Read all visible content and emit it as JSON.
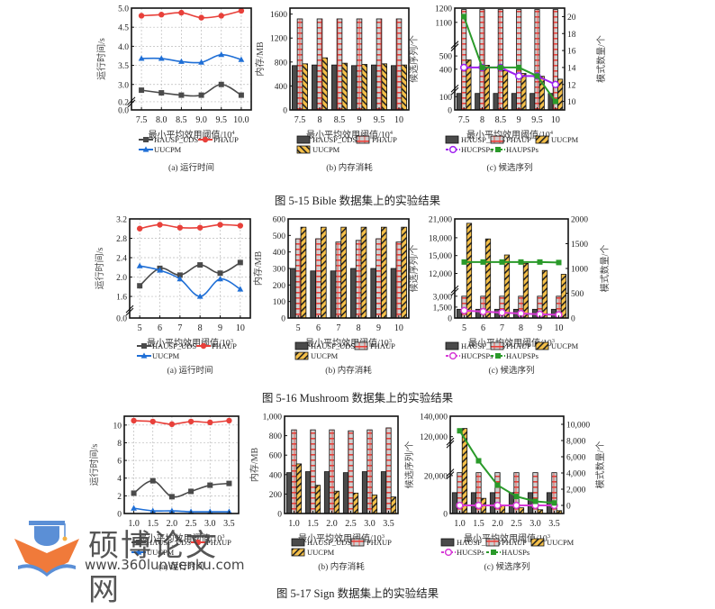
{
  "figures": [
    {
      "caption": "图 5-15 Bible 数据集上的实验结果"
    },
    {
      "caption": "图 5-16 Mushroom 数据集上的实验结果"
    },
    {
      "caption": "图 5-17 Sign 数据集上的实验结果"
    }
  ],
  "watermark": {
    "title": "硕博论文网",
    "url": "www.360lunwenku.com"
  },
  "colors": {
    "hausp_uds": "#4a4a4a",
    "phaup": "#e8403a",
    "uucpm": "#f5c04a",
    "uucpm_line": "#1f6fd6",
    "hucpsps": "#a020f0",
    "hucsps": "#d63ad6",
    "haupsps": "#2a9a2a"
  },
  "chart_data": [
    {
      "id": "bible-a",
      "type": "line",
      "subcaption": "(a) 运行时间",
      "xlabel": "最小平均效用阈值/10",
      "xlabel_exp": "4",
      "ylabel": "运行时间/s",
      "categories": [
        "7.5",
        "8.0",
        "8.5",
        "9.0",
        "9.5",
        "10.0"
      ],
      "yticks": [
        "0.0",
        "0.2",
        "3.0",
        "3.5",
        "4.0",
        "4.5",
        "5.0"
      ],
      "axis_break": true,
      "grid": true,
      "ylim_upper": [
        2.6,
        5.0
      ],
      "series": [
        {
          "name": "HAUSP_UDS",
          "values": [
            2.85,
            2.78,
            2.72,
            2.72,
            3.0,
            2.72
          ],
          "marker": "square",
          "color_key": "hausp_uds"
        },
        {
          "name": "PHAUP",
          "values": [
            4.8,
            4.83,
            4.88,
            4.75,
            4.8,
            4.93
          ],
          "marker": "circle",
          "color_key": "phaup"
        },
        {
          "name": "UUCPM",
          "values": [
            3.68,
            3.68,
            3.6,
            3.58,
            3.78,
            3.65
          ],
          "marker": "triangle",
          "color_key": "uucpm_line"
        }
      ],
      "legend": [
        "HAUSP_UDS",
        "PHAUP",
        "UUCPM"
      ],
      "legend_position": "bottom"
    },
    {
      "id": "bible-b",
      "type": "bar",
      "subcaption": "(b) 内存消耗",
      "xlabel": "最小平均效用阈值/10",
      "xlabel_exp": "4",
      "ylabel": "内存/MB",
      "categories": [
        "7.5",
        "8",
        "8.5",
        "9",
        "9.5",
        "10"
      ],
      "yticks": [
        "0",
        "400",
        "800",
        "1200",
        "1600"
      ],
      "ylim": [
        0,
        1700
      ],
      "series": [
        {
          "name": "HAUSP_UDS",
          "values": [
            740,
            750,
            750,
            740,
            750,
            740
          ],
          "color_key": "hausp_uds",
          "pattern": "solid"
        },
        {
          "name": "PHAUP",
          "values": [
            1520,
            1520,
            1520,
            1520,
            1520,
            1520
          ],
          "color_key": "phaup",
          "pattern": "grid"
        },
        {
          "name": "UUCPM",
          "values": [
            770,
            870,
            780,
            760,
            770,
            750
          ],
          "color_key": "uucpm",
          "pattern": "backhatch"
        }
      ],
      "legend": [
        "HAUSP_UDS",
        "PHAUP",
        "UUCPM"
      ],
      "legend_position": "bottom"
    },
    {
      "id": "bible-c",
      "type": "bar",
      "subcaption": "(c) 候选序列",
      "xlabel": "最小平均效用阈值/10",
      "xlabel_exp": "4",
      "ylabel": "候选序列/个",
      "ylabel_right": "模式数量/个",
      "categories": [
        "7.5",
        "8",
        "8.5",
        "9",
        "9.5",
        "10"
      ],
      "yticks": [
        "0",
        "100",
        "400",
        "500",
        "1100",
        "1200"
      ],
      "yticks_right": [
        "10",
        "12",
        "14",
        "16",
        "18",
        "20"
      ],
      "ylim_right": [
        9,
        21
      ],
      "axis_break": true,
      "series": [
        {
          "name": "HAUSP_UDS",
          "values": [
            140,
            140,
            140,
            140,
            140,
            140
          ],
          "color_key": "hausp_uds",
          "pattern": "solid"
        },
        {
          "name": "PHAUP",
          "values": [
            1190,
            1190,
            1190,
            1190,
            1190,
            1190
          ],
          "color_key": "phaup",
          "pattern": "grid"
        },
        {
          "name": "UUCPM",
          "values": [
            470,
            430,
            390,
            370,
            350,
            330
          ],
          "color_key": "uucpm",
          "pattern": "hatch"
        }
      ],
      "line_series": [
        {
          "name": "HUCPSPs",
          "values": [
            14,
            14,
            14,
            13,
            13,
            12
          ],
          "marker": "open-circle",
          "color_key": "hucpsps",
          "axis": "right"
        },
        {
          "name": "HAUPSPs",
          "values": [
            20,
            14,
            14,
            14,
            13,
            10
          ],
          "marker": "square",
          "color_key": "haupsps",
          "axis": "right"
        }
      ],
      "legend": [
        "HAUSP_UDS",
        "PHAUP",
        "UUCPM",
        "HUCPSPs",
        "HAUPSPs"
      ],
      "legend_position": "bottom"
    },
    {
      "id": "mushroom-a",
      "type": "line",
      "subcaption": "(a) 运行时间",
      "xlabel": "最小平均效用阈值/10",
      "xlabel_exp": "3",
      "ylabel": "运行时间/s",
      "categories": [
        "5",
        "6",
        "7",
        "8",
        "9",
        "10"
      ],
      "yticks": [
        "0.0",
        "1.6",
        "2.0",
        "2.4",
        "2.8",
        "3.2"
      ],
      "axis_break": true,
      "grid": true,
      "ylim_upper": [
        1.4,
        3.2
      ],
      "series": [
        {
          "name": "HAUSP_UDS",
          "values": [
            1.82,
            2.18,
            2.04,
            2.25,
            2.08,
            2.3
          ],
          "marker": "square",
          "color_key": "hausp_uds"
        },
        {
          "name": "PHAUP",
          "values": [
            3.0,
            3.08,
            3.02,
            3.02,
            3.08,
            3.06
          ],
          "marker": "circle",
          "color_key": "phaup"
        },
        {
          "name": "UUCPM",
          "values": [
            2.23,
            2.14,
            1.96,
            1.6,
            1.96,
            1.75
          ],
          "marker": "triangle",
          "color_key": "uucpm_line"
        }
      ],
      "legend": [
        "HAUSP_UDS",
        "PHAUP",
        "UUCPM"
      ],
      "legend_position": "bottom"
    },
    {
      "id": "mushroom-b",
      "type": "bar",
      "subcaption": "(b) 内存消耗",
      "xlabel": "最小平均效用阈值/10",
      "xlabel_exp": "3",
      "ylabel": "内存/MB",
      "categories": [
        "5",
        "6",
        "7",
        "8",
        "9",
        "10"
      ],
      "yticks": [
        "0",
        "100",
        "200",
        "300",
        "400",
        "500",
        "600"
      ],
      "ylim": [
        0,
        600
      ],
      "series": [
        {
          "name": "HAUSP_UDS",
          "values": [
            300,
            285,
            285,
            300,
            300,
            300
          ],
          "color_key": "hausp_uds",
          "pattern": "solid"
        },
        {
          "name": "PHAUP",
          "values": [
            480,
            480,
            460,
            470,
            480,
            460
          ],
          "color_key": "phaup",
          "pattern": "grid"
        },
        {
          "name": "UUCPM",
          "values": [
            550,
            550,
            550,
            550,
            550,
            550
          ],
          "color_key": "uucpm",
          "pattern": "hatch"
        }
      ],
      "legend": [
        "HAUSP_UDS",
        "PHAUP",
        "UUCPM"
      ],
      "legend_position": "bottom"
    },
    {
      "id": "mushroom-c",
      "type": "bar",
      "subcaption": "(c) 候选序列",
      "xlabel": "最小平均效用阈值/10",
      "xlabel_exp": "3",
      "ylabel": "候选序列/个",
      "ylabel_right": "模式数量/个",
      "categories": [
        "5",
        "6",
        "7",
        "8",
        "9",
        "10"
      ],
      "yticks": [
        "0",
        "1,500",
        "3,000",
        "12,000",
        "15,000",
        "18,000",
        "21,000"
      ],
      "yticks_right": [
        "0",
        "500",
        "1000",
        "1500",
        "2000"
      ],
      "ylim_right": [
        0,
        2000
      ],
      "axis_break": true,
      "series": [
        {
          "name": "HAUSP_UDS",
          "values": [
            1200,
            1200,
            1200,
            1200,
            1200,
            1200
          ],
          "color_key": "hausp_uds",
          "pattern": "solid"
        },
        {
          "name": "PHAUP",
          "values": [
            3000,
            3000,
            3000,
            3000,
            3000,
            3000
          ],
          "color_key": "phaup",
          "pattern": "grid"
        },
        {
          "name": "UUCPM",
          "values": [
            20300,
            17800,
            15100,
            13700,
            12500,
            11800
          ],
          "color_key": "uucpm",
          "pattern": "hatch"
        }
      ],
      "line_series": [
        {
          "name": "HUCPSPs",
          "values": [
            150,
            130,
            110,
            90,
            75,
            65
          ],
          "marker": "open-circle",
          "color_key": "hucsps",
          "axis": "right"
        },
        {
          "name": "HAUPSPs",
          "values": [
            1130,
            1130,
            1130,
            1130,
            1130,
            1120
          ],
          "marker": "square",
          "color_key": "haupsps",
          "axis": "right"
        }
      ],
      "legend": [
        "HAUSP_UDS",
        "PHAUP",
        "UUCPM",
        "HUCPSPs",
        "HAUPSPs"
      ],
      "legend_position": "bottom"
    },
    {
      "id": "sign-a",
      "type": "line",
      "subcaption": "(a) 运行时间",
      "xlabel": "最小平均效用阈值/10",
      "xlabel_exp": "3",
      "ylabel": "运行时间/s",
      "categories": [
        "1.0",
        "1.5",
        "2.0",
        "2.5",
        "3.0",
        "3.5"
      ],
      "yticks": [
        "0",
        "2",
        "4",
        "6",
        "8",
        "10"
      ],
      "ylim": [
        0,
        11
      ],
      "grid": true,
      "series": [
        {
          "name": "HAUSP_UDS",
          "values": [
            2.3,
            3.7,
            1.9,
            2.5,
            3.2,
            3.4
          ],
          "marker": "square",
          "color_key": "hausp_uds"
        },
        {
          "name": "PHAUP",
          "values": [
            10.5,
            10.4,
            10.1,
            10.4,
            10.3,
            10.5
          ],
          "marker": "circle",
          "color_key": "phaup"
        },
        {
          "name": "UUCPM",
          "values": [
            0.6,
            0.3,
            0.3,
            0.2,
            0.2,
            0.2
          ],
          "marker": "triangle",
          "color_key": "uucpm_line"
        }
      ],
      "legend": [
        "HAUSP_UDS",
        "PHAUP",
        "UUCPM"
      ],
      "legend_position": "bottom"
    },
    {
      "id": "sign-b",
      "type": "bar",
      "subcaption": "(b) 内存消耗",
      "xlabel": "最小平均效用阈值/10",
      "xlabel_exp": "3",
      "ylabel": "内存/MB",
      "categories": [
        "1.0",
        "1.5",
        "2.0",
        "2.5",
        "3.0",
        "3.5"
      ],
      "yticks": [
        "0",
        "200",
        "400",
        "600",
        "800",
        "1,000"
      ],
      "ylim": [
        0,
        1000
      ],
      "series": [
        {
          "name": "HAUSP_UDS",
          "values": [
            420,
            430,
            430,
            420,
            430,
            430
          ],
          "color_key": "hausp_uds",
          "pattern": "solid"
        },
        {
          "name": "PHAUP",
          "values": [
            860,
            860,
            860,
            850,
            860,
            880
          ],
          "color_key": "phaup",
          "pattern": "grid"
        },
        {
          "name": "UUCPM",
          "values": [
            510,
            290,
            230,
            210,
            190,
            170
          ],
          "color_key": "uucpm",
          "pattern": "hatch"
        }
      ],
      "legend": [
        "HAUSP_UDS",
        "PHAUP",
        "UUCPM"
      ],
      "legend_position": "bottom"
    },
    {
      "id": "sign-c",
      "type": "bar",
      "subcaption": "(c) 候选序列",
      "xlabel": "最小平均效用阈值/10",
      "xlabel_exp": "3",
      "ylabel": "候选序列/个",
      "ylabel_right": "模式数量/个",
      "categories": [
        "1.0",
        "1.5",
        "2.0",
        "2.5",
        "3.0",
        "3.5"
      ],
      "yticks": [
        "0",
        "20,000",
        "120,000",
        "140,000"
      ],
      "yticks_right": [
        "0",
        "2,000",
        "4,000",
        "6,000",
        "8,000",
        "10,000"
      ],
      "ylim_right": [
        -1000,
        11000
      ],
      "axis_break": true,
      "series": [
        {
          "name": "HAUSP_UDS",
          "values": [
            11000,
            11000,
            11000,
            11000,
            11000,
            11000
          ],
          "color_key": "hausp_uds",
          "pattern": "solid"
        },
        {
          "name": "PHAUP",
          "values": [
            25000,
            25000,
            25000,
            25000,
            25000,
            25000
          ],
          "color_key": "phaup",
          "pattern": "grid"
        },
        {
          "name": "UUCPM",
          "values": [
            128000,
            8000,
            4000,
            3000,
            2000,
            1500
          ],
          "color_key": "uucpm",
          "pattern": "hatch"
        }
      ],
      "line_series": [
        {
          "name": "HUCSPs",
          "values": [
            0,
            0,
            0,
            0,
            0,
            0
          ],
          "marker": "open-circle",
          "color_key": "hucsps",
          "axis": "right"
        },
        {
          "name": "HAUSPs",
          "values": [
            9200,
            5500,
            2500,
            1100,
            500,
            300
          ],
          "marker": "square",
          "color_key": "haupsps",
          "axis": "right"
        }
      ],
      "legend": [
        "HAUSP_UDS",
        "PHAUP",
        "UUCPM",
        "HUCSPs",
        "HAUSPs"
      ],
      "legend_position": "bottom"
    }
  ]
}
